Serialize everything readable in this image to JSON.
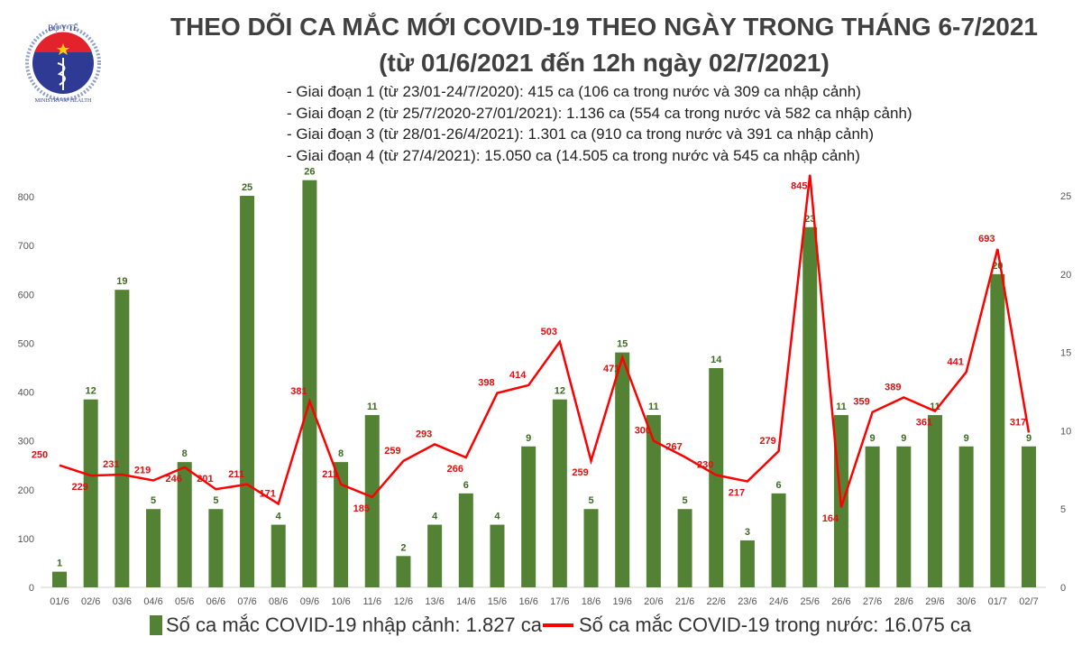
{
  "logo": {
    "text_top": "BỘ Y TẾ",
    "text_bottom": "MINISTRY OF HEALTH"
  },
  "chart_data": {
    "type": "bar+line",
    "title": "THEO DÕI CA MẮC MỚI COVID-19 THEO NGÀY TRONG THÁNG 6-7/2021",
    "subtitle": "(từ 01/6/2021 đến 12h ngày 02/7/2021)",
    "annotations": [
      "- Giai đoạn 1 (từ 23/01-24/7/2020): 415 ca (106 ca trong nước và 309 ca nhập cảnh)",
      "- Giai đoạn 2 (từ 25/7/2020-27/01/2021): 1.136 ca (554 ca trong nước và 582 ca nhập cảnh)",
      "- Giai đoạn 3 (từ 28/01-26/4/2021): 1.301 ca (910 ca trong nước và 391 ca nhập cảnh)",
      "- Giai đoạn 4 (từ 27/4/2021): 15.050 ca (14.505 ca trong nước và 545 ca nhập cảnh)"
    ],
    "categories": [
      "01/6",
      "02/6",
      "03/6",
      "04/6",
      "05/6",
      "06/6",
      "07/6",
      "08/6",
      "09/6",
      "10/6",
      "11/6",
      "12/6",
      "13/6",
      "14/6",
      "15/6",
      "16/6",
      "17/6",
      "18/6",
      "19/6",
      "20/6",
      "21/6",
      "22/6",
      "23/6",
      "24/6",
      "25/6",
      "26/6",
      "27/6",
      "28/6",
      "29/6",
      "30/6",
      "01/7",
      "02/7"
    ],
    "series": [
      {
        "name": "Số ca mắc COVID-19 nhập cảnh: 1.827 ca",
        "type": "bar",
        "axis": "right",
        "color": "#548235",
        "values": [
          1,
          12,
          19,
          5,
          8,
          5,
          25,
          4,
          26,
          8,
          11,
          2,
          4,
          6,
          4,
          9,
          12,
          5,
          15,
          11,
          5,
          14,
          3,
          6,
          23,
          11,
          9,
          9,
          11,
          9,
          20,
          9
        ]
      },
      {
        "name": "Số ca mắc COVID-19 trong nước: 16.075 ca",
        "type": "line",
        "axis": "left",
        "color": "#ff0000",
        "values": [
          250,
          229,
          231,
          219,
          246,
          201,
          211,
          171,
          381,
          211,
          185,
          259,
          293,
          266,
          398,
          414,
          503,
          259,
          471,
          300,
          267,
          230,
          217,
          279,
          845,
          164,
          359,
          389,
          361,
          441,
          693,
          317
        ]
      }
    ],
    "left_axis": {
      "ylim": [
        0,
        850
      ],
      "ticks": [
        0,
        100,
        200,
        300,
        400,
        500,
        600,
        700,
        800
      ]
    },
    "right_axis": {
      "ylim": [
        0,
        26.5
      ],
      "ticks": [
        0,
        5,
        10,
        15,
        20,
        25
      ]
    },
    "grid": false,
    "legend_placement": "bottom"
  }
}
